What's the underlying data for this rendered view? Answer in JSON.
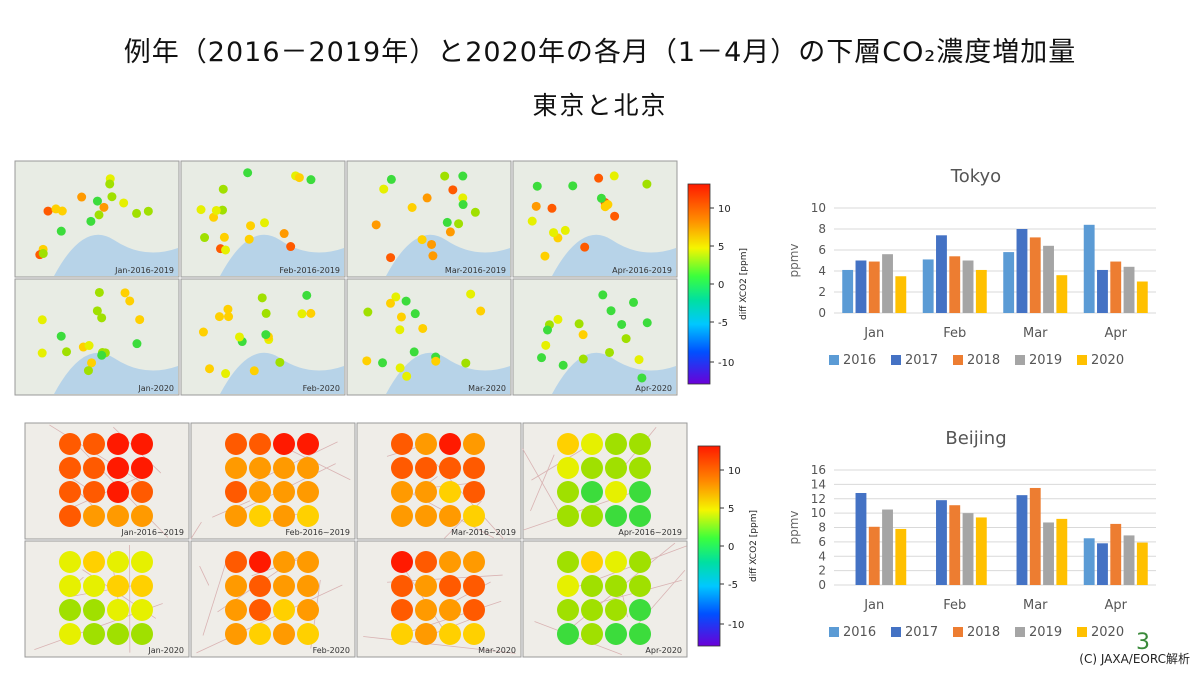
{
  "title": "例年（2016－2019年）と2020年の各月（1－4月）の下層CO₂濃度増加量",
  "subtitle": "東京と北京",
  "footer": "(C) JAXA/EORC解析",
  "page_number": "3",
  "colorbar": {
    "label": "diff XCO2 [ppm]",
    "ticks": [
      "10",
      "5",
      "0",
      "-5",
      "-10"
    ]
  },
  "map_panels": {
    "tokyo": [
      "Jan-2016-2019",
      "Feb-2016-2019",
      "Mar-2016-2019",
      "Apr-2016-2019",
      "Jan-2020",
      "Feb-2020",
      "Mar-2020",
      "Apr-2020"
    ],
    "beijing": [
      "Jan-2016~2019",
      "Feb-2016~2019",
      "Mar-2016~2019",
      "Apr-2016~2019",
      "Jan-2020",
      "Feb-2020",
      "Mar-2020",
      "Apr-2020"
    ]
  },
  "colors": {
    "s2016": "#5b9bd5",
    "s2017": "#4472c4",
    "s2018": "#ed7d31",
    "s2019": "#a5a5a5",
    "s2020": "#ffc000"
  },
  "chart_data": [
    {
      "type": "bar",
      "title": "Tokyo",
      "ylabel": "ppmv",
      "categories": [
        "Jan",
        "Feb",
        "Mar",
        "Apr"
      ],
      "ylim": [
        0,
        10
      ],
      "yticks": [
        "0",
        "2",
        "4",
        "6",
        "8",
        "10"
      ],
      "grid": true,
      "legend": "bottom",
      "series": [
        {
          "name": "2016",
          "values": [
            4.1,
            5.1,
            5.8,
            8.4
          ]
        },
        {
          "name": "2017",
          "values": [
            5.0,
            7.4,
            8.0,
            4.1
          ]
        },
        {
          "name": "2018",
          "values": [
            4.9,
            5.4,
            7.2,
            4.9
          ]
        },
        {
          "name": "2019",
          "values": [
            5.6,
            5.0,
            6.4,
            4.4
          ]
        },
        {
          "name": "2020",
          "values": [
            3.5,
            4.1,
            3.6,
            3.0
          ]
        }
      ]
    },
    {
      "type": "bar",
      "title": "Beijing",
      "ylabel": "ppmv",
      "categories": [
        "Jan",
        "Feb",
        "Mar",
        "Apr"
      ],
      "ylim": [
        0,
        16
      ],
      "yticks": [
        "0",
        "2",
        "4",
        "6",
        "8",
        "10",
        "12",
        "14",
        "16"
      ],
      "grid": true,
      "legend": "bottom",
      "series": [
        {
          "name": "2016",
          "values": [
            null,
            null,
            null,
            6.5
          ]
        },
        {
          "name": "2017",
          "values": [
            12.8,
            11.8,
            12.5,
            5.8
          ]
        },
        {
          "name": "2018",
          "values": [
            8.1,
            11.1,
            13.5,
            8.5
          ]
        },
        {
          "name": "2019",
          "values": [
            10.5,
            10.0,
            8.7,
            6.9
          ]
        },
        {
          "name": "2020",
          "values": [
            7.8,
            9.4,
            9.2,
            5.9
          ]
        }
      ]
    }
  ]
}
